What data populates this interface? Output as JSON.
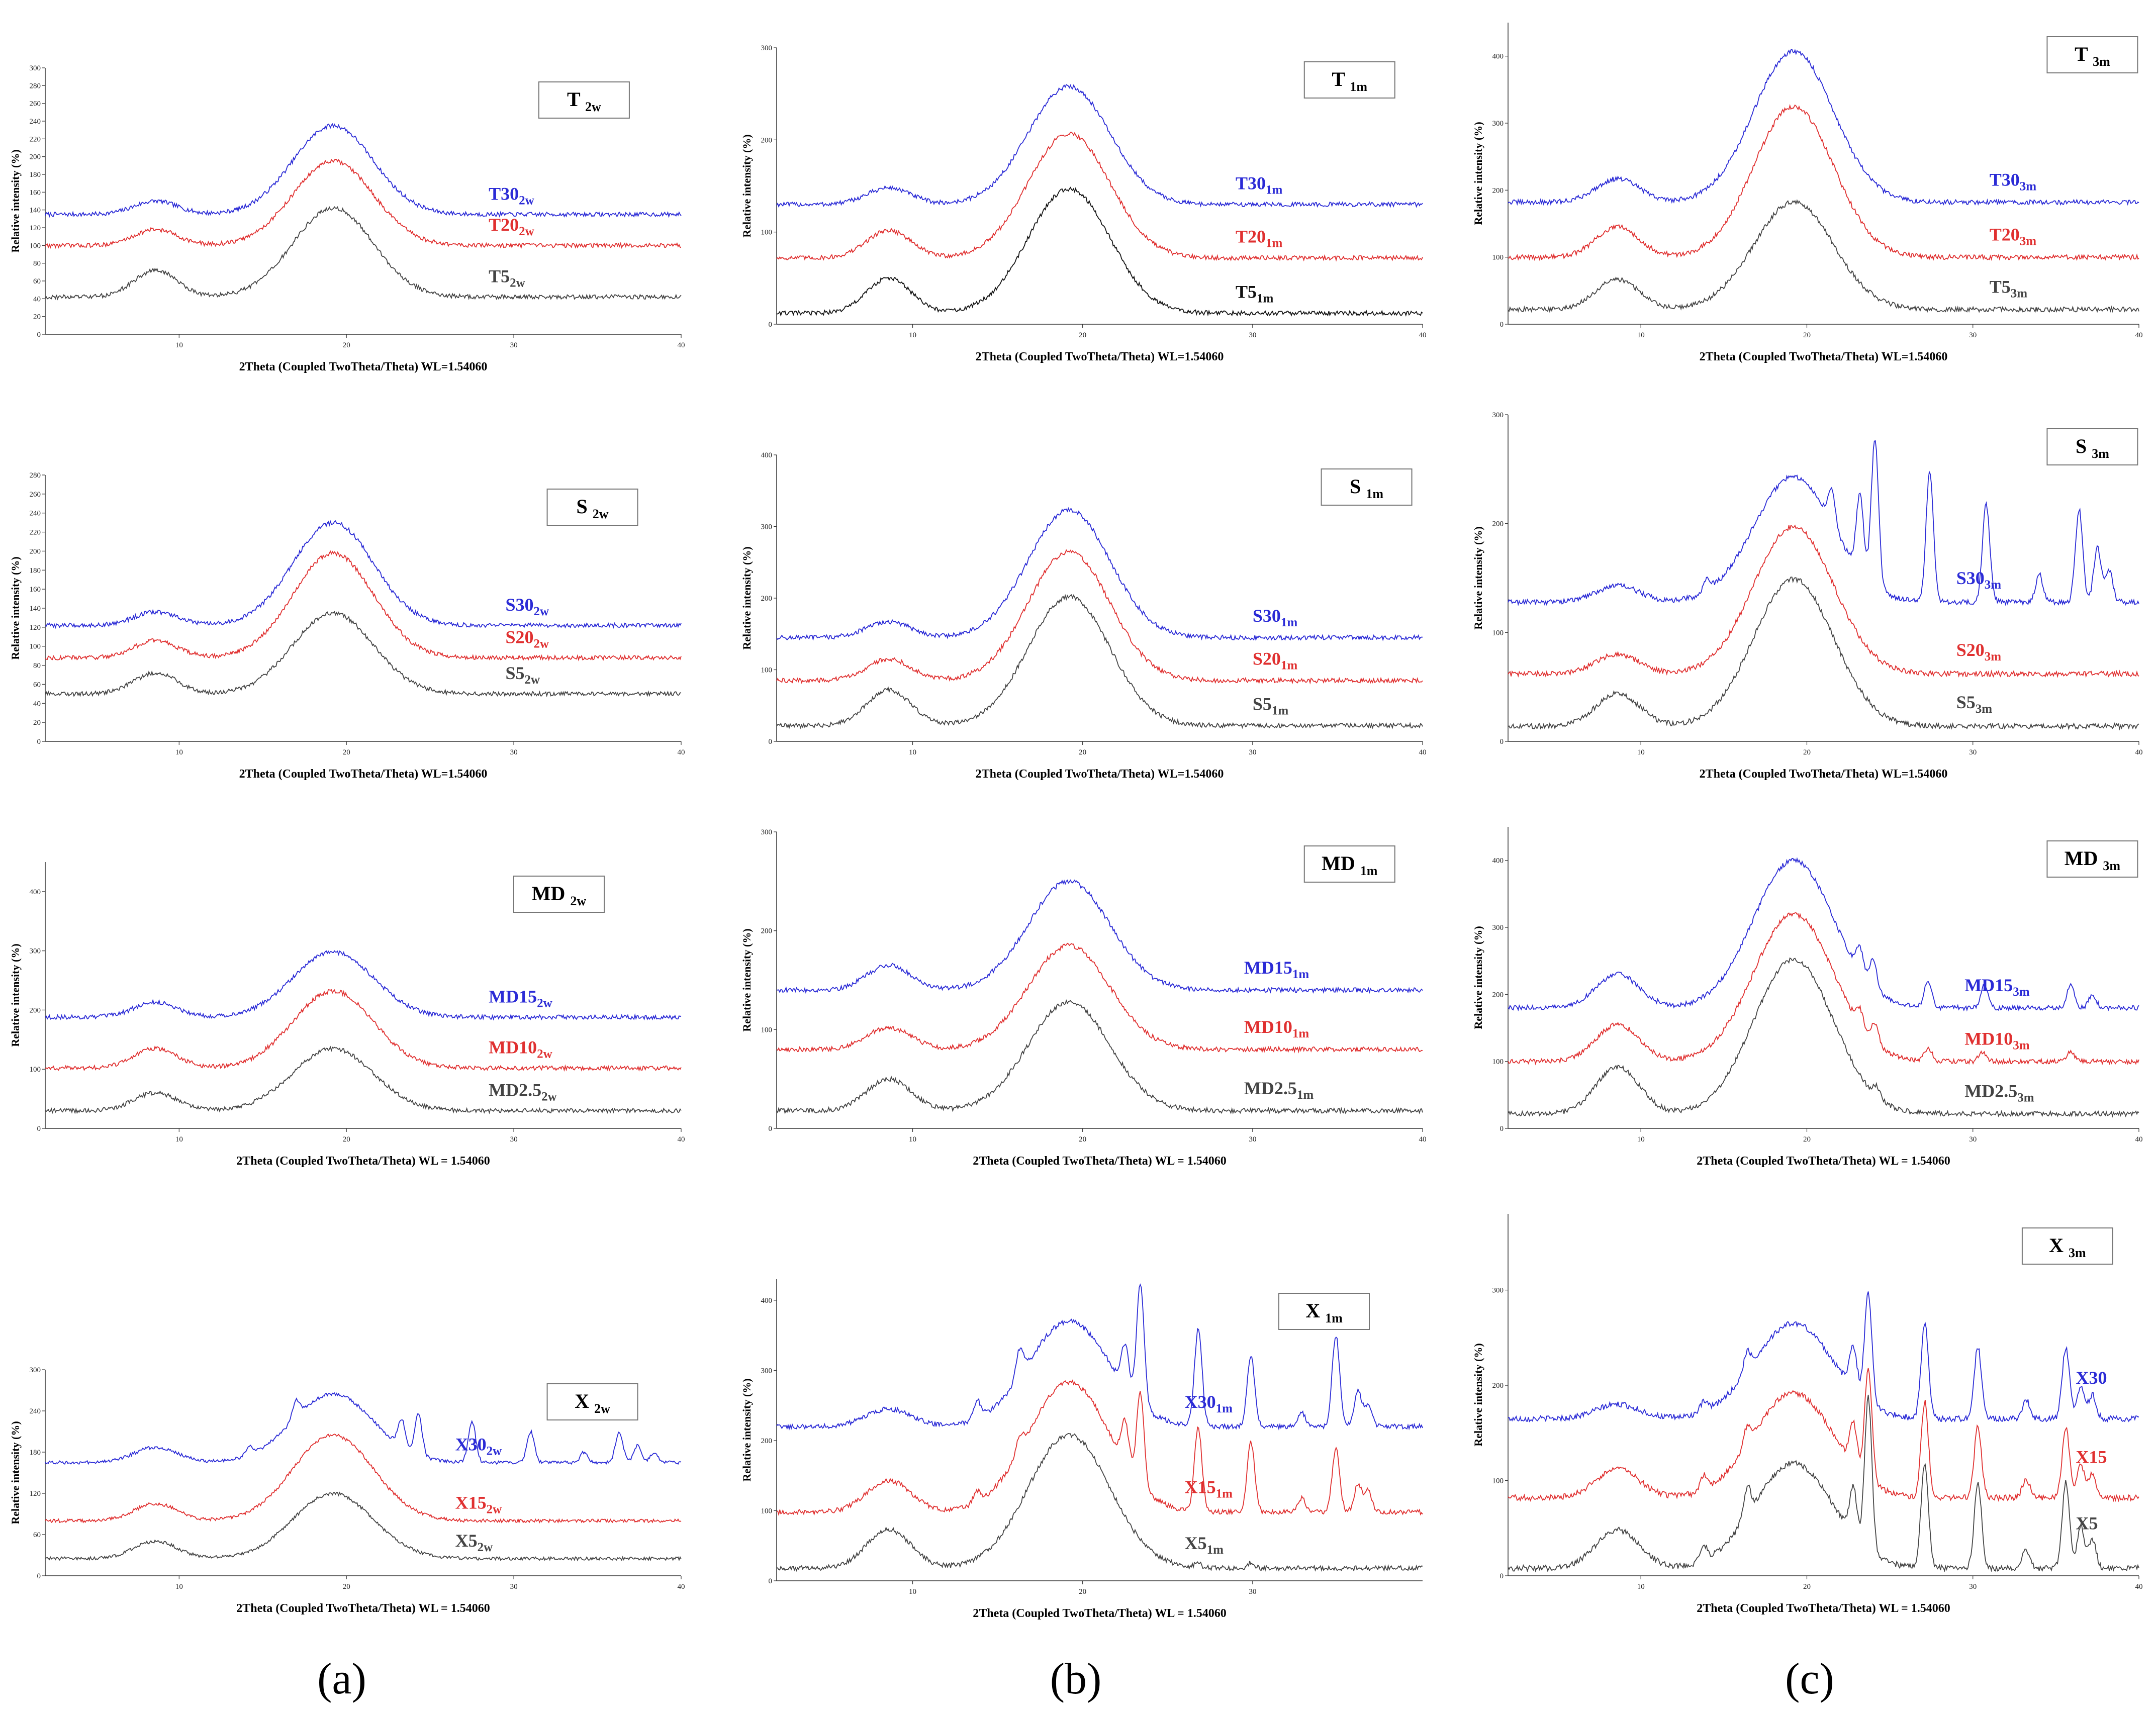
{
  "chart_data": [
    {
      "id": "T_2w",
      "type": "line",
      "title": "T",
      "title_sub": "2w",
      "xlabel": "2Theta (Coupled TwoTheta/Theta) WL=1.54060",
      "ylabel": "Relative intensity (%)",
      "xlim": [
        2,
        40
      ],
      "ylim": [
        0,
        300
      ],
      "xticks": [
        10,
        20,
        30,
        40
      ],
      "yticks": [
        0,
        20,
        40,
        60,
        80,
        100,
        120,
        140,
        160,
        180,
        200,
        220,
        240,
        260,
        280,
        300
      ],
      "grid": false,
      "series": [
        {
          "name": "T30",
          "sub": "2w",
          "color": "#2b2bd6",
          "base": 135,
          "low": 15,
          "amorph": 100
        },
        {
          "name": "T20",
          "sub": "2w",
          "color": "#e03030",
          "base": 100,
          "low": 18,
          "amorph": 95
        },
        {
          "name": "T5",
          "sub": "2w",
          "color": "#444444",
          "base": 42,
          "low": 30,
          "amorph": 100
        }
      ]
    },
    {
      "id": "T_1m",
      "type": "line",
      "title": "T",
      "title_sub": "1m",
      "xlabel": "2Theta (Coupled TwoTheta/Theta) WL=1.54060",
      "ylabel": "Relative intensity (%)",
      "xlim": [
        2,
        40
      ],
      "ylim": [
        0,
        300
      ],
      "xticks": [
        10,
        20,
        30,
        40
      ],
      "yticks": [
        0,
        100,
        200,
        300
      ],
      "grid": false,
      "series": [
        {
          "name": "T30",
          "sub": "1m",
          "color": "#2b2bd6",
          "base": 130,
          "low": 18,
          "amorph": 128
        },
        {
          "name": "T20",
          "sub": "1m",
          "color": "#e03030",
          "base": 72,
          "low": 30,
          "amorph": 135
        },
        {
          "name": "T5",
          "sub": "1m",
          "color": "#111111",
          "base": 12,
          "low": 38,
          "amorph": 135
        }
      ]
    },
    {
      "id": "T_3m",
      "type": "line",
      "title": "T",
      "title_sub": "3m",
      "xlabel": "2Theta (Coupled TwoTheta/Theta) WL=1.54060",
      "ylabel": "Relative intensity (%)",
      "xlim": [
        2,
        40
      ],
      "ylim": [
        0,
        450
      ],
      "xticks": [
        10,
        20,
        30,
        40
      ],
      "yticks": [
        0,
        100,
        200,
        300,
        400
      ],
      "grid": false,
      "series": [
        {
          "name": "T30",
          "sub": "3m",
          "color": "#2b2bd6",
          "base": 182,
          "low": 35,
          "amorph": 225
        },
        {
          "name": "T20",
          "sub": "3m",
          "color": "#e03030",
          "base": 100,
          "low": 45,
          "amorph": 225
        },
        {
          "name": "T5",
          "sub": "3m",
          "color": "#444444",
          "base": 22,
          "low": 45,
          "amorph": 160
        }
      ]
    },
    {
      "id": "S_2w",
      "type": "line",
      "title": "S",
      "title_sub": "2w",
      "xlabel": "2Theta (Coupled TwoTheta/Theta) WL=1.54060",
      "ylabel": "Relative intensity (%)",
      "xlim": [
        2,
        40
      ],
      "ylim": [
        0,
        280
      ],
      "xticks": [
        10,
        20,
        30,
        40
      ],
      "yticks": [
        0,
        20,
        40,
        60,
        80,
        100,
        120,
        140,
        160,
        180,
        200,
        220,
        240,
        260,
        280
      ],
      "grid": false,
      "series": [
        {
          "name": "S30",
          "sub": "2w",
          "color": "#2b2bd6",
          "base": 122,
          "low": 14,
          "amorph": 108
        },
        {
          "name": "S20",
          "sub": "2w",
          "color": "#e03030",
          "base": 88,
          "low": 18,
          "amorph": 110
        },
        {
          "name": "S5",
          "sub": "2w",
          "color": "#444444",
          "base": 50,
          "low": 22,
          "amorph": 85
        }
      ]
    },
    {
      "id": "S_1m",
      "type": "line",
      "title": "S",
      "title_sub": "1m",
      "xlabel": "2Theta (Coupled TwoTheta/Theta) WL=1.54060",
      "ylabel": "Relative intensity (%)",
      "xlim": [
        2,
        40
      ],
      "ylim": [
        0,
        400
      ],
      "xticks": [
        10,
        20,
        30,
        40
      ],
      "yticks": [
        0,
        100,
        200,
        300,
        400
      ],
      "grid": false,
      "series": [
        {
          "name": "S30",
          "sub": "1m",
          "color": "#2b2bd6",
          "base": 145,
          "low": 22,
          "amorph": 178
        },
        {
          "name": "S20",
          "sub": "1m",
          "color": "#e03030",
          "base": 85,
          "low": 30,
          "amorph": 180
        },
        {
          "name": "S5",
          "sub": "1m",
          "color": "#444444",
          "base": 22,
          "low": 50,
          "amorph": 180
        }
      ]
    },
    {
      "id": "S_3m",
      "type": "line",
      "title": "S",
      "title_sub": "3m",
      "xlabel": "2Theta (Coupled TwoTheta/Theta) WL=1.54060",
      "ylabel": "Relative intensity (%)",
      "xlim": [
        2,
        40
      ],
      "ylim": [
        0,
        300
      ],
      "xticks": [
        10,
        20,
        30,
        40
      ],
      "yticks": [
        0,
        100,
        200,
        300
      ],
      "grid": false,
      "series": [
        {
          "name": "S30",
          "sub": "3m",
          "color": "#2b2bd6",
          "base": 128,
          "low": 15,
          "amorph": 115,
          "peaks": [
            [
              14.0,
              10
            ],
            [
              21.5,
              30
            ],
            [
              23.2,
              70
            ],
            [
              24.1,
              135
            ],
            [
              27.4,
              120
            ],
            [
              30.8,
              90
            ],
            [
              34.0,
              25
            ],
            [
              36.4,
              85
            ],
            [
              37.5,
              50
            ],
            [
              38.2,
              30
            ]
          ]
        },
        {
          "name": "S20",
          "sub": "3m",
          "color": "#e03030",
          "base": 62,
          "low": 18,
          "amorph": 135
        },
        {
          "name": "S5",
          "sub": "3m",
          "color": "#444444",
          "base": 14,
          "low": 30,
          "amorph": 135
        }
      ]
    },
    {
      "id": "MD_2w",
      "type": "line",
      "title": "MD",
      "title_sub": "2w",
      "xlabel": "2Theta (Coupled TwoTheta/Theta) WL = 1.54060",
      "ylabel": "Relative intensity (%)",
      "xlim": [
        2,
        40
      ],
      "ylim": [
        0,
        450
      ],
      "xticks": [
        10,
        20,
        30,
        40
      ],
      "yticks": [
        0,
        100,
        200,
        300,
        400
      ],
      "grid": false,
      "series": [
        {
          "name": "MD15",
          "sub": "2w",
          "color": "#2b2bd6",
          "base": 188,
          "low": 25,
          "amorph": 110
        },
        {
          "name": "MD10",
          "sub": "2w",
          "color": "#e03030",
          "base": 102,
          "low": 33,
          "amorph": 130
        },
        {
          "name": "MD2.5",
          "sub": "2w",
          "color": "#444444",
          "base": 30,
          "low": 30,
          "amorph": 105
        }
      ]
    },
    {
      "id": "MD_1m",
      "type": "line",
      "title": "MD",
      "title_sub": "1m",
      "xlabel": "2Theta (Coupled TwoTheta/Theta) WL = 1.54060",
      "ylabel": "Relative intensity (%)",
      "xlim": [
        2,
        40
      ],
      "ylim": [
        0,
        300
      ],
      "xticks": [
        10,
        20,
        30,
        40
      ],
      "yticks": [
        0,
        100,
        200,
        300
      ],
      "grid": false,
      "series": [
        {
          "name": "MD15",
          "sub": "1m",
          "color": "#2b2bd6",
          "base": 140,
          "low": 25,
          "amorph": 110
        },
        {
          "name": "MD10",
          "sub": "1m",
          "color": "#e03030",
          "base": 80,
          "low": 22,
          "amorph": 105
        },
        {
          "name": "MD2.5",
          "sub": "1m",
          "color": "#444444",
          "base": 18,
          "low": 32,
          "amorph": 110
        }
      ]
    },
    {
      "id": "MD_3m",
      "type": "line",
      "title": "MD",
      "title_sub": "3m",
      "xlabel": "2Theta (Coupled TwoTheta/Theta) WL = 1.54060",
      "ylabel": "Relative intensity (%)",
      "xlim": [
        2,
        40
      ],
      "ylim": [
        0,
        450
      ],
      "xticks": [
        10,
        20,
        30,
        40
      ],
      "yticks": [
        0,
        100,
        200,
        300,
        400
      ],
      "grid": false,
      "series": [
        {
          "name": "MD15",
          "sub": "3m",
          "color": "#2b2bd6",
          "base": 180,
          "low": 50,
          "amorph": 220,
          "peaks": [
            [
              23.2,
              35
            ],
            [
              24.0,
              45
            ],
            [
              27.3,
              40
            ],
            [
              30.7,
              35
            ],
            [
              35.9,
              35
            ],
            [
              37.2,
              20
            ]
          ]
        },
        {
          "name": "MD10",
          "sub": "3m",
          "color": "#e03030",
          "base": 100,
          "low": 55,
          "amorph": 220,
          "peaks": [
            [
              23.2,
              25
            ],
            [
              24.1,
              30
            ],
            [
              27.3,
              20
            ],
            [
              30.6,
              15
            ],
            [
              35.9,
              15
            ]
          ]
        },
        {
          "name": "MD2.5",
          "sub": "3m",
          "color": "#444444",
          "base": 22,
          "low": 70,
          "amorph": 230,
          "peaks": [
            [
              24.2,
              15
            ]
          ]
        }
      ]
    },
    {
      "id": "X_2w",
      "type": "line",
      "title": "X",
      "title_sub": "2w",
      "xlabel": "2Theta (Coupled TwoTheta/Theta) WL = 1.54060",
      "ylabel": "Relative intensity (%)",
      "xlim": [
        2,
        40
      ],
      "ylim": [
        0,
        300
      ],
      "xticks": [
        10,
        20,
        30,
        40
      ],
      "yticks": [
        0,
        60,
        120,
        180,
        240,
        300
      ],
      "grid": false,
      "series": [
        {
          "name": "X30",
          "sub": "2w",
          "color": "#2b2bd6",
          "base": 165,
          "low": 22,
          "amorph": 100,
          "peaks": [
            [
              14.2,
              12
            ],
            [
              17.0,
              25
            ],
            [
              23.3,
              40
            ],
            [
              24.3,
              60
            ],
            [
              27.5,
              60
            ],
            [
              31.0,
              45
            ],
            [
              34.2,
              15
            ],
            [
              36.3,
              45
            ],
            [
              37.4,
              25
            ],
            [
              38.4,
              15
            ]
          ]
        },
        {
          "name": "X15",
          "sub": "2w",
          "color": "#e03030",
          "base": 80,
          "low": 25,
          "amorph": 125
        },
        {
          "name": "X5",
          "sub": "2w",
          "color": "#444444",
          "base": 25,
          "low": 25,
          "amorph": 95
        }
      ]
    },
    {
      "id": "X_1m",
      "type": "line",
      "title": "X",
      "title_sub": "1m",
      "xlabel": "2Theta (Coupled TwoTheta/Theta) WL = 1.54060",
      "ylabel": "Relative intensity (%)",
      "xlim": [
        2,
        40
      ],
      "ylim": [
        0,
        430
      ],
      "xticks": [
        10,
        20,
        30
      ],
      "yticks": [
        0,
        100,
        200,
        300,
        400
      ],
      "grid": false,
      "series": [
        {
          "name": "X30",
          "sub": "1m",
          "color": "#2b2bd6",
          "base": 220,
          "low": 25,
          "amorph": 150,
          "peaks": [
            [
              13.8,
              25
            ],
            [
              16.3,
              40
            ],
            [
              22.5,
              60
            ],
            [
              23.4,
              170
            ],
            [
              26.8,
              140
            ],
            [
              29.9,
              100
            ],
            [
              32.9,
              20
            ],
            [
              34.9,
              130
            ],
            [
              36.2,
              50
            ],
            [
              36.8,
              30
            ]
          ]
        },
        {
          "name": "X15",
          "sub": "1m",
          "color": "#e03030",
          "base": 98,
          "low": 45,
          "amorph": 185,
          "peaks": [
            [
              13.8,
              15
            ],
            [
              16.3,
              20
            ],
            [
              22.5,
              60
            ],
            [
              23.4,
              130
            ],
            [
              26.8,
              120
            ],
            [
              29.9,
              100
            ],
            [
              32.9,
              20
            ],
            [
              34.9,
              90
            ],
            [
              36.2,
              40
            ],
            [
              36.8,
              30
            ]
          ]
        },
        {
          "name": "X5",
          "sub": "1m",
          "color": "#444444",
          "base": 18,
          "low": 55,
          "amorph": 190,
          "peaks": [
            [
              26.8,
              5
            ],
            [
              29.9,
              8
            ]
          ]
        }
      ]
    },
    {
      "id": "X_3m",
      "type": "line",
      "title": "X",
      "title_sub": "3m",
      "xlabel": "2Theta (Coupled TwoTheta/Theta) WL = 1.54060",
      "ylabel": "Relative intensity (%)",
      "xlim": [
        2,
        40
      ],
      "ylim": [
        0,
        380
      ],
      "xticks": [
        10,
        20,
        30,
        40
      ],
      "yticks": [
        0,
        100,
        200,
        300
      ],
      "grid": false,
      "series": [
        {
          "name": "X30",
          "sub": "",
          "color": "#2b2bd6",
          "base": 165,
          "low": 15,
          "amorph": 100,
          "peaks": [
            [
              13.8,
              10
            ],
            [
              16.4,
              20
            ],
            [
              22.8,
              45
            ],
            [
              23.7,
              115
            ],
            [
              27.1,
              100
            ],
            [
              30.3,
              75
            ],
            [
              33.2,
              20
            ],
            [
              35.6,
              75
            ],
            [
              36.5,
              35
            ],
            [
              37.2,
              25
            ]
          ]
        },
        {
          "name": "X15",
          "sub": "",
          "color": "#e03030",
          "base": 82,
          "low": 30,
          "amorph": 110,
          "peaks": [
            [
              13.8,
              15
            ],
            [
              16.4,
              20
            ],
            [
              22.8,
              45
            ],
            [
              23.7,
              115
            ],
            [
              27.1,
              100
            ],
            [
              30.3,
              75
            ],
            [
              33.2,
              20
            ],
            [
              35.6,
              75
            ],
            [
              36.5,
              35
            ],
            [
              37.2,
              25
            ]
          ]
        },
        {
          "name": "X5",
          "sub": "",
          "color": "#444444",
          "base": 8,
          "low": 40,
          "amorph": 110,
          "peaks": [
            [
              13.8,
              15
            ],
            [
              16.4,
              30
            ],
            [
              22.8,
              50
            ],
            [
              23.7,
              160
            ],
            [
              27.1,
              110
            ],
            [
              30.3,
              90
            ],
            [
              33.2,
              20
            ],
            [
              35.6,
              90
            ],
            [
              36.5,
              45
            ],
            [
              37.2,
              30
            ]
          ]
        }
      ]
    }
  ],
  "panel_labels": {
    "a": "(a)",
    "b": "(b)",
    "c": "(c)"
  }
}
